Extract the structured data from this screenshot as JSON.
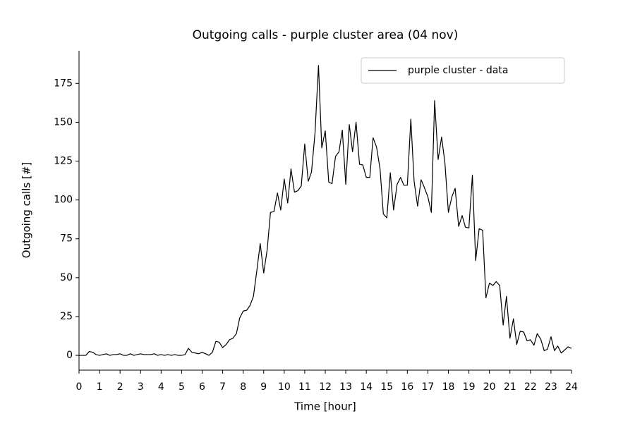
{
  "chart_data": {
    "type": "line",
    "title": "Outgoing calls - purple cluster area (04 nov)",
    "x_label": "Time [hour]",
    "y_label": "Outgoing calls [#]",
    "x": [
      0,
      0.17,
      0.33,
      0.5,
      0.67,
      0.83,
      1,
      1.17,
      1.33,
      1.5,
      1.67,
      1.83,
      2,
      2.17,
      2.33,
      2.5,
      2.67,
      2.83,
      3,
      3.17,
      3.33,
      3.5,
      3.67,
      3.83,
      4,
      4.17,
      4.33,
      4.5,
      4.67,
      4.83,
      5,
      5.17,
      5.33,
      5.5,
      5.67,
      5.83,
      6,
      6.17,
      6.33,
      6.5,
      6.67,
      6.83,
      7,
      7.17,
      7.33,
      7.5,
      7.67,
      7.83,
      8,
      8.17,
      8.33,
      8.5,
      8.67,
      8.83,
      9,
      9.17,
      9.33,
      9.5,
      9.67,
      9.83,
      10,
      10.17,
      10.33,
      10.5,
      10.67,
      10.83,
      11,
      11.17,
      11.33,
      11.5,
      11.67,
      11.83,
      12,
      12.17,
      12.33,
      12.5,
      12.67,
      12.83,
      13,
      13.17,
      13.33,
      13.5,
      13.67,
      13.83,
      14,
      14.17,
      14.33,
      14.5,
      14.67,
      14.83,
      15,
      15.17,
      15.33,
      15.5,
      15.67,
      15.83,
      16,
      16.17,
      16.33,
      16.5,
      16.67,
      16.83,
      17,
      17.17,
      17.33,
      17.5,
      17.67,
      17.83,
      18,
      18.17,
      18.33,
      18.5,
      18.67,
      18.83,
      19,
      19.17,
      19.33,
      19.5,
      19.67,
      19.83,
      20,
      20.17,
      20.33,
      20.5,
      20.67,
      20.83,
      21,
      21.17,
      21.33,
      21.5,
      21.67,
      21.83,
      22,
      22.17,
      22.33,
      22.5,
      22.67,
      22.83,
      23,
      23.17,
      23.33,
      23.5,
      23.67,
      23.83,
      24
    ],
    "series": [
      {
        "name": "purple cluster - data",
        "color": "#000000",
        "values": [
          0,
          0,
          0,
          2.5,
          2,
          0.5,
          0,
          0.5,
          1,
          0,
          0.5,
          0.5,
          1,
          0,
          0,
          1,
          0,
          0.5,
          1,
          0.5,
          0.5,
          0.5,
          1,
          0,
          0.5,
          0,
          0.5,
          0,
          0.5,
          0,
          0,
          0.5,
          4.5,
          2,
          1.5,
          1,
          2,
          1,
          0,
          2,
          9,
          8.5,
          5,
          7,
          10,
          11,
          14,
          24,
          28.5,
          29,
          32,
          38,
          55,
          72,
          53,
          68,
          92,
          92.5,
          104.5,
          93.5,
          113.5,
          98,
          120,
          105,
          106,
          109,
          136,
          112,
          118,
          143,
          186.5,
          133.5,
          144.5,
          111.5,
          110.5,
          128,
          131,
          145,
          110,
          148.5,
          131,
          150,
          123,
          122.5,
          114.5,
          114.5,
          140,
          134,
          120,
          91,
          88.5,
          117.5,
          93.5,
          110,
          114.5,
          109.5,
          109.5,
          152,
          112,
          96,
          113,
          108,
          102,
          92,
          164,
          126,
          140.5,
          124,
          92,
          102,
          107.5,
          83,
          90,
          82.5,
          82,
          116,
          61,
          81.5,
          80.5,
          37,
          46.5,
          45,
          47.5,
          45,
          19.5,
          38,
          11,
          23.5,
          7,
          15.5,
          15,
          9.5,
          10,
          6.5,
          14,
          10.5,
          3,
          4,
          12,
          3,
          6,
          1.5,
          3.5,
          5.5,
          4.5
        ]
      }
    ],
    "xlim": [
      0,
      24
    ],
    "xticks": [
      0,
      1,
      2,
      3,
      4,
      5,
      6,
      7,
      8,
      9,
      10,
      11,
      12,
      13,
      14,
      15,
      16,
      17,
      18,
      19,
      20,
      21,
      22,
      23,
      24
    ],
    "ylim": [
      -9.5,
      196
    ],
    "yticks": [
      0,
      25,
      50,
      75,
      100,
      125,
      150,
      175
    ],
    "legend": "upper right",
    "grid": false
  }
}
